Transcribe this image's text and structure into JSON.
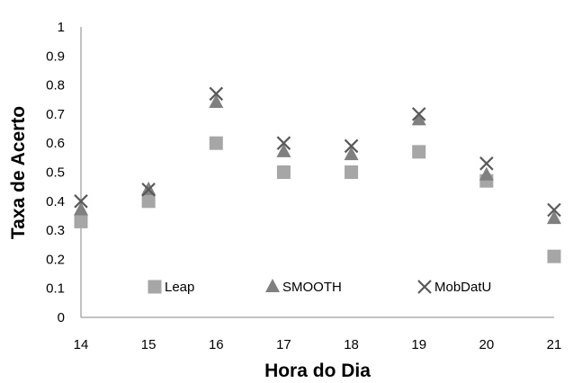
{
  "chart_data": {
    "type": "scatter",
    "title": "",
    "xlabel": "Hora do Dia",
    "ylabel": "Taxa de Acerto",
    "x": [
      14,
      15,
      16,
      17,
      18,
      19,
      20,
      21
    ],
    "xlim": [
      14,
      21
    ],
    "ylim": [
      0,
      1
    ],
    "yticks": [
      "0",
      "0.1",
      "0.2",
      "0.3",
      "0.4",
      "0.5",
      "0.6",
      "0.7",
      "0.8",
      "0.9",
      "1"
    ],
    "grid": false,
    "legend_position": "bottom-inside",
    "series": [
      {
        "name": "Leap",
        "marker": "square",
        "color": "#a6a6a6",
        "values": [
          0.33,
          0.4,
          0.6,
          0.5,
          0.5,
          0.57,
          0.47,
          0.21
        ]
      },
      {
        "name": "SMOOTH",
        "marker": "triangle",
        "color": "#808080",
        "values": [
          0.37,
          0.44,
          0.74,
          0.57,
          0.56,
          0.68,
          0.49,
          0.34
        ]
      },
      {
        "name": "MobDatU",
        "marker": "x",
        "color": "#595959",
        "values": [
          0.4,
          0.44,
          0.77,
          0.6,
          0.59,
          0.7,
          0.53,
          0.37
        ]
      }
    ]
  }
}
